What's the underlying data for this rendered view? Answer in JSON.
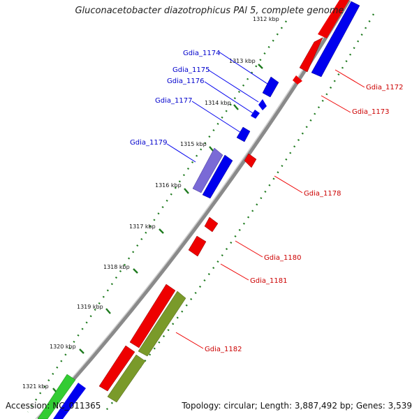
{
  "title": "Gluconacetobacter diazotrophicus PAl 5, complete genome",
  "footer": {
    "accession": "Accession: NC_011365",
    "topology": "Topology: circular; Length: 3,887,492 bp; Genes: 3,539"
  },
  "colors": {
    "forward_cds": "#0000ee",
    "reverse_cds": "#ee0000",
    "forward_label": "#0000cc",
    "reverse_label": "#cc0000",
    "forward_other": "#7a6ad6",
    "green_feature": "#33cc33",
    "olive_feature": "#7a9a2a",
    "tick_marks": "#227a22",
    "backbone": "#888888"
  },
  "ticks": [
    "1312 kbp",
    "1313 kbp",
    "1314 kbp",
    "1315 kbp",
    "1316 kbp",
    "1317 kbp",
    "1318 kbp",
    "1319 kbp",
    "1320 kbp",
    "1321 kbp"
  ],
  "forward_labels": [
    "Gdia_1174",
    "Gdia_1175",
    "Gdia_1176",
    "Gdia_1177",
    "Gdia_1179"
  ],
  "reverse_labels": [
    "Gdia_1172",
    "Gdia_1173",
    "Gdia_1178",
    "Gdia_1180",
    "Gdia_1181",
    "Gdia_1182"
  ]
}
